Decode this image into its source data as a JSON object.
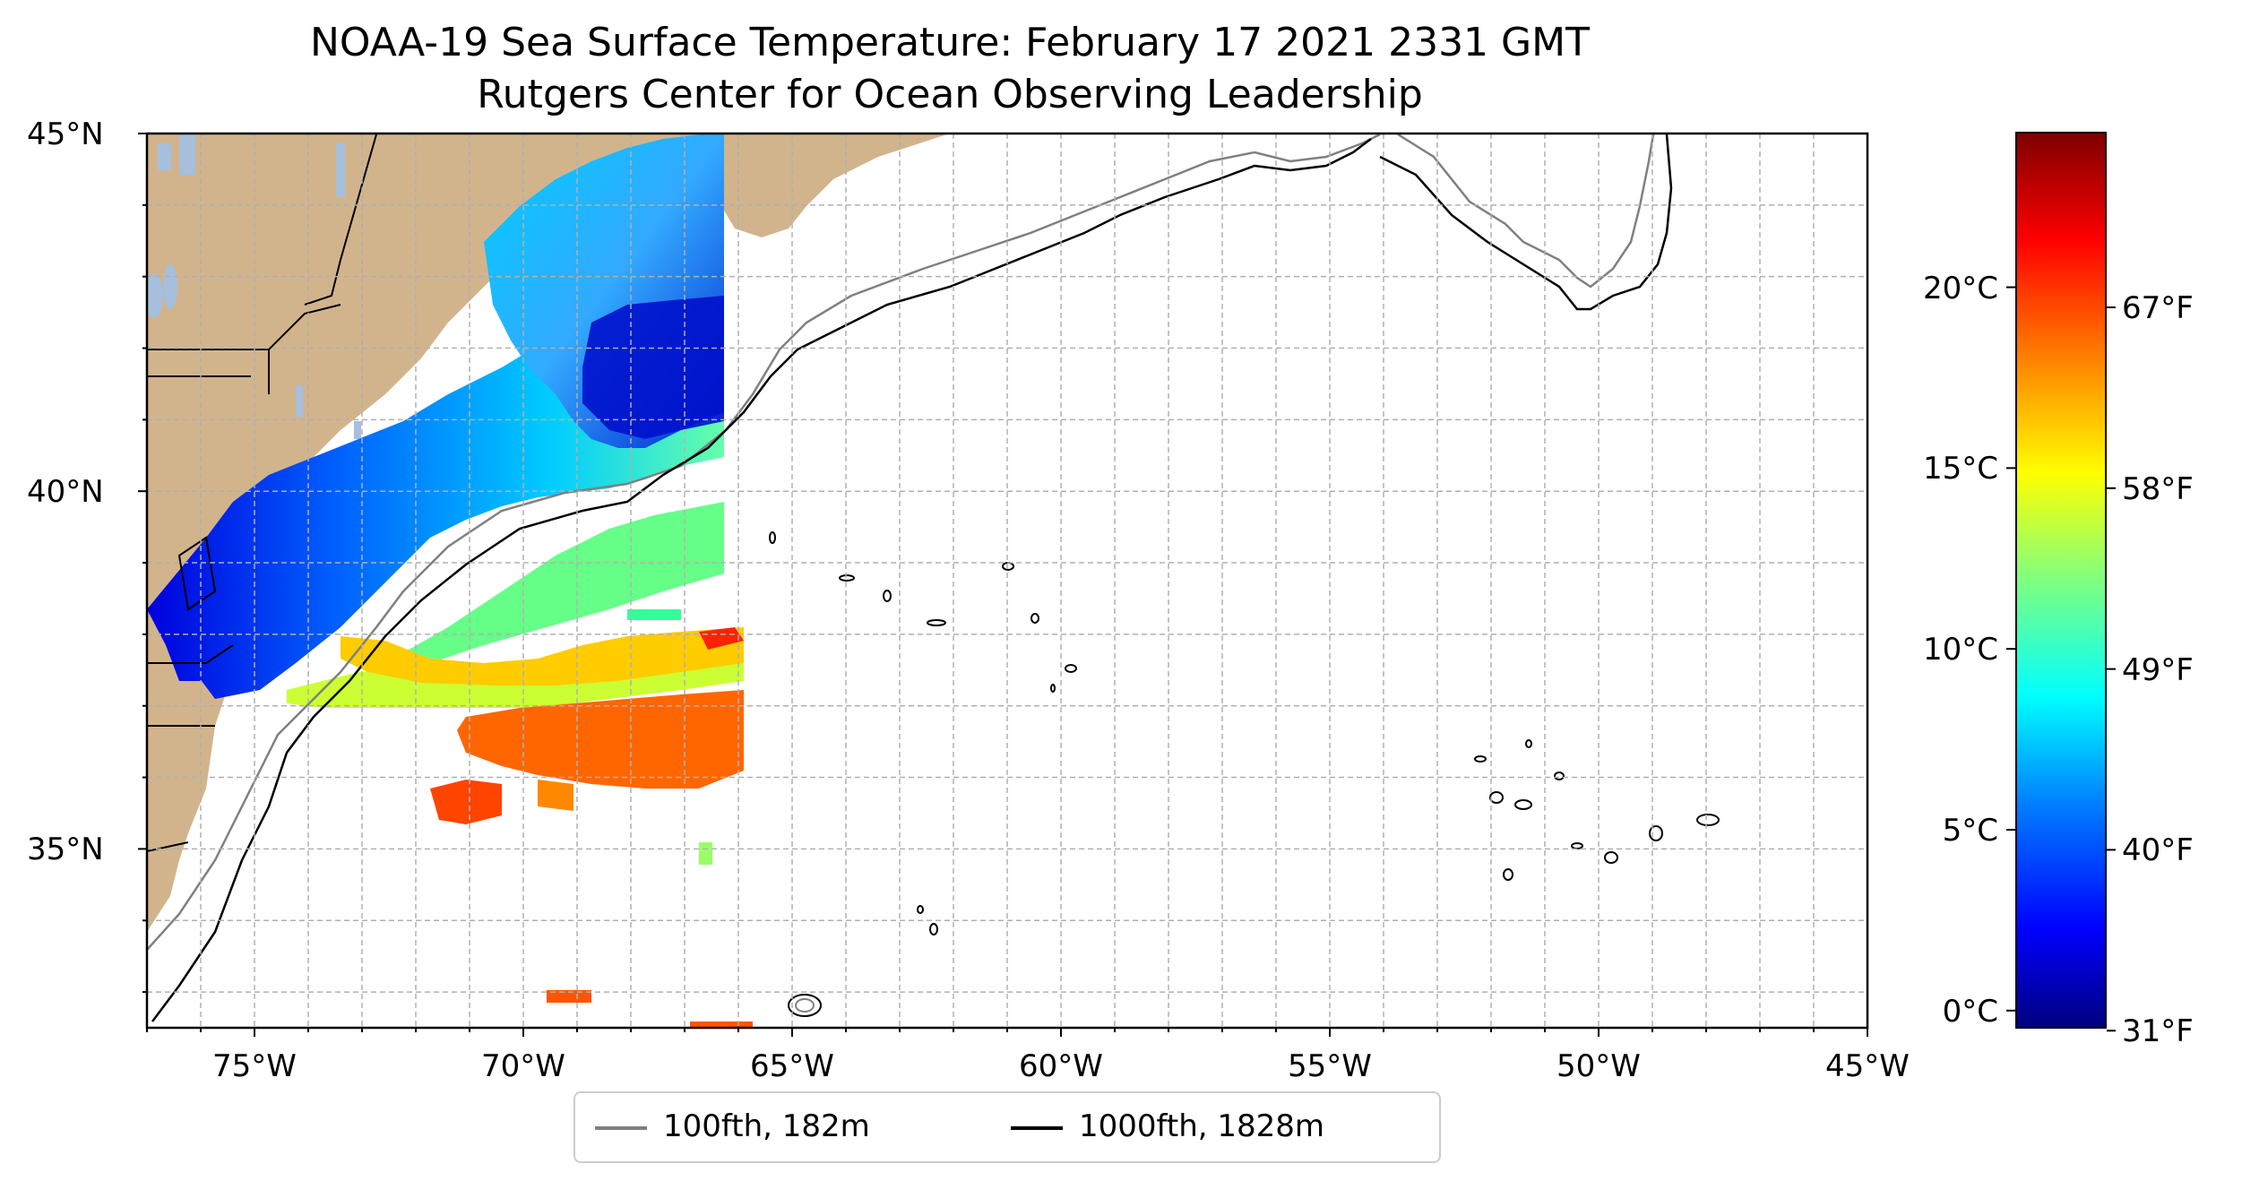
{
  "title": {
    "line1": "NOAA-19 Sea Surface Temperature: February 17 2021 2331 GMT",
    "line2": "Rutgers Center for Ocean Observing Leadership"
  },
  "map": {
    "lon_range": [
      -77,
      -45
    ],
    "lat_range": [
      32.5,
      45
    ],
    "lon_ticks": [
      {
        "lon": -75,
        "label": "75°W"
      },
      {
        "lon": -70,
        "label": "70°W"
      },
      {
        "lon": -65,
        "label": "65°W"
      },
      {
        "lon": -60,
        "label": "60°W"
      },
      {
        "lon": -55,
        "label": "55°W"
      },
      {
        "lon": -50,
        "label": "50°W"
      },
      {
        "lon": -45,
        "label": "45°W"
      }
    ],
    "lat_ticks": [
      {
        "lat": 45,
        "label": "45°N"
      },
      {
        "lat": 40,
        "label": "40°N"
      },
      {
        "lat": 35,
        "label": "35°N"
      }
    ],
    "gridlines": true,
    "land_color": "#d2b48c",
    "water_color": "#a5bfdd"
  },
  "legend": {
    "items": [
      {
        "label": "100fth, 182m",
        "color": "#808080"
      },
      {
        "label": "1000fth, 1828m",
        "color": "#000000"
      }
    ]
  },
  "colorbar": {
    "colormap": "jet",
    "celsius_ticks": [
      {
        "value": 0,
        "label": "0°C"
      },
      {
        "value": 5,
        "label": "5°C"
      },
      {
        "value": 10,
        "label": "10°C"
      },
      {
        "value": 15,
        "label": "15°C"
      },
      {
        "value": 20,
        "label": "20°C"
      }
    ],
    "fahrenheit_ticks": [
      {
        "value": 31,
        "label": "31°F"
      },
      {
        "value": 40,
        "label": "40°F"
      },
      {
        "value": 49,
        "label": "49°F"
      },
      {
        "value": 58,
        "label": "58°F"
      },
      {
        "value": 67,
        "label": "67°F"
      }
    ]
  }
}
